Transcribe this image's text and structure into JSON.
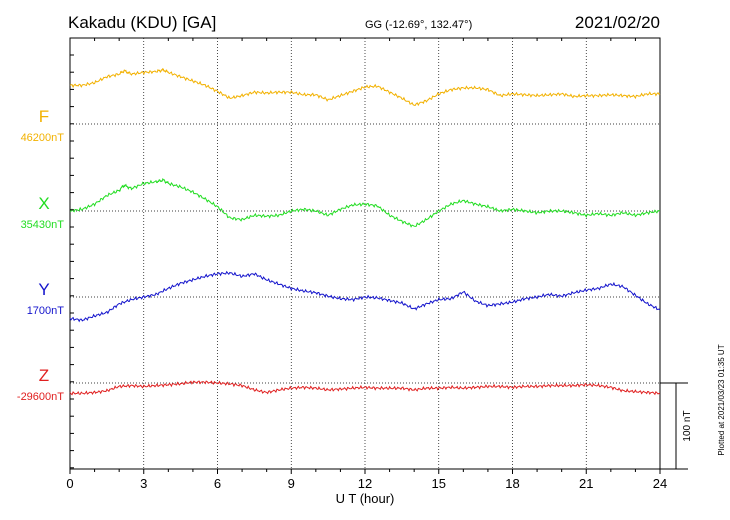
{
  "header": {
    "station": "Kakadu (KDU)  [GA]",
    "coords": "GG (-12.69°, 132.47°)",
    "date": "2021/02/20"
  },
  "side_note": "Plotted at 2021/03/23 01:35 UT",
  "scale_label": "100 nT",
  "chart_data": {
    "type": "line",
    "xlabel": "U T (hour)",
    "xlim": [
      0,
      24
    ],
    "x_ticks": [
      "0",
      "3",
      "6",
      "9",
      "12",
      "15",
      "18",
      "21",
      "24"
    ],
    "scale_nT": 100,
    "colors": {
      "F": "#f2b100",
      "X": "#22dd22",
      "Y": "#1414cc",
      "Z": "#e02020"
    },
    "series": [
      {
        "name": "F",
        "baseline_label": "46200nT",
        "baseline_nT": 46200,
        "points": [
          [
            0,
            45
          ],
          [
            0.5,
            45
          ],
          [
            1,
            48
          ],
          [
            1.5,
            55
          ],
          [
            2,
            58
          ],
          [
            2.2,
            62
          ],
          [
            2.5,
            58
          ],
          [
            3,
            60
          ],
          [
            3.5,
            61
          ],
          [
            3.8,
            63
          ],
          [
            4,
            60
          ],
          [
            4.5,
            55
          ],
          [
            5,
            50
          ],
          [
            5.5,
            45
          ],
          [
            6,
            38
          ],
          [
            6.5,
            30
          ],
          [
            7,
            33
          ],
          [
            7.5,
            37
          ],
          [
            8,
            36
          ],
          [
            8.5,
            37
          ],
          [
            9,
            37
          ],
          [
            9.5,
            34
          ],
          [
            10,
            34
          ],
          [
            10.5,
            28
          ],
          [
            11,
            33
          ],
          [
            11.5,
            38
          ],
          [
            12,
            43
          ],
          [
            12.5,
            44
          ],
          [
            13,
            37
          ],
          [
            13.5,
            30
          ],
          [
            14,
            22
          ],
          [
            14.5,
            27
          ],
          [
            15,
            35
          ],
          [
            15.5,
            40
          ],
          [
            16,
            42
          ],
          [
            16.5,
            42
          ],
          [
            17,
            40
          ],
          [
            17.5,
            33
          ],
          [
            18,
            35
          ],
          [
            18.5,
            34
          ],
          [
            19,
            33
          ],
          [
            19.5,
            34
          ],
          [
            20,
            35
          ],
          [
            20.5,
            32
          ],
          [
            21,
            33
          ],
          [
            21.5,
            33
          ],
          [
            22,
            34
          ],
          [
            22.5,
            33
          ],
          [
            23,
            32
          ],
          [
            23.5,
            35
          ],
          [
            24,
            35
          ]
        ]
      },
      {
        "name": "X",
        "baseline_label": "35430nT",
        "baseline_nT": 35430,
        "points": [
          [
            0,
            0
          ],
          [
            0.5,
            2
          ],
          [
            1,
            8
          ],
          [
            1.5,
            18
          ],
          [
            2,
            24
          ],
          [
            2.2,
            30
          ],
          [
            2.5,
            26
          ],
          [
            3,
            32
          ],
          [
            3.5,
            34
          ],
          [
            3.8,
            36
          ],
          [
            4,
            32
          ],
          [
            4.5,
            28
          ],
          [
            5,
            22
          ],
          [
            5.5,
            14
          ],
          [
            6,
            5
          ],
          [
            6.5,
            -8
          ],
          [
            7,
            -10
          ],
          [
            7.5,
            -5
          ],
          [
            8,
            -6
          ],
          [
            8.5,
            -5
          ],
          [
            9,
            0
          ],
          [
            9.5,
            2
          ],
          [
            10,
            0
          ],
          [
            10.5,
            -5
          ],
          [
            11,
            2
          ],
          [
            11.5,
            7
          ],
          [
            12,
            8
          ],
          [
            12.5,
            6
          ],
          [
            13,
            -5
          ],
          [
            13.5,
            -12
          ],
          [
            14,
            -18
          ],
          [
            14.5,
            -10
          ],
          [
            15,
            0
          ],
          [
            15.5,
            8
          ],
          [
            16,
            12
          ],
          [
            16.5,
            8
          ],
          [
            17,
            5
          ],
          [
            17.5,
            0
          ],
          [
            18,
            2
          ],
          [
            18.5,
            0
          ],
          [
            19,
            -2
          ],
          [
            19.5,
            0
          ],
          [
            20,
            0
          ],
          [
            20.5,
            -2
          ],
          [
            21,
            -5
          ],
          [
            21.5,
            -3
          ],
          [
            22,
            -5
          ],
          [
            22.5,
            -2
          ],
          [
            23,
            -5
          ],
          [
            23.5,
            -2
          ],
          [
            24,
            0
          ]
        ]
      },
      {
        "name": "Y",
        "baseline_label": "1700nT",
        "baseline_nT": 1700,
        "points": [
          [
            0,
            -25
          ],
          [
            0.5,
            -27
          ],
          [
            1,
            -22
          ],
          [
            1.5,
            -18
          ],
          [
            2,
            -8
          ],
          [
            2.5,
            -3
          ],
          [
            3,
            0
          ],
          [
            3.5,
            3
          ],
          [
            4,
            10
          ],
          [
            4.5,
            16
          ],
          [
            5,
            20
          ],
          [
            5.5,
            24
          ],
          [
            6,
            27
          ],
          [
            6.5,
            28
          ],
          [
            7,
            24
          ],
          [
            7.5,
            27
          ],
          [
            8,
            20
          ],
          [
            8.5,
            15
          ],
          [
            9,
            10
          ],
          [
            9.5,
            7
          ],
          [
            10,
            5
          ],
          [
            10.5,
            1
          ],
          [
            11,
            -2
          ],
          [
            11.5,
            -3
          ],
          [
            12,
            0
          ],
          [
            12.5,
            -1
          ],
          [
            13,
            -4
          ],
          [
            13.5,
            -7
          ],
          [
            14,
            -14
          ],
          [
            14.5,
            -8
          ],
          [
            15,
            -3
          ],
          [
            15.5,
            -2
          ],
          [
            16,
            6
          ],
          [
            16.5,
            -5
          ],
          [
            17,
            -10
          ],
          [
            17.5,
            -8
          ],
          [
            18,
            -6
          ],
          [
            18.5,
            -2
          ],
          [
            19,
            0
          ],
          [
            19.5,
            3
          ],
          [
            20,
            1
          ],
          [
            20.5,
            5
          ],
          [
            21,
            8
          ],
          [
            21.5,
            10
          ],
          [
            22,
            15
          ],
          [
            22.5,
            12
          ],
          [
            23,
            2
          ],
          [
            23.5,
            -8
          ],
          [
            24,
            -15
          ]
        ]
      },
      {
        "name": "Z",
        "baseline_label": "-29600nT",
        "baseline_nT": -29600,
        "points": [
          [
            0,
            -12
          ],
          [
            0.5,
            -12
          ],
          [
            1,
            -11
          ],
          [
            1.5,
            -9
          ],
          [
            2,
            -4
          ],
          [
            2.5,
            -3
          ],
          [
            3,
            -4
          ],
          [
            3.5,
            -3
          ],
          [
            4,
            -2
          ],
          [
            4.5,
            -1
          ],
          [
            5,
            1
          ],
          [
            5.5,
            1
          ],
          [
            6,
            0
          ],
          [
            6.5,
            -1
          ],
          [
            7,
            -3
          ],
          [
            7.5,
            -8
          ],
          [
            8,
            -11
          ],
          [
            8.5,
            -8
          ],
          [
            9,
            -6
          ],
          [
            9.5,
            -5
          ],
          [
            10,
            -6
          ],
          [
            10.5,
            -8
          ],
          [
            11,
            -7
          ],
          [
            11.5,
            -6
          ],
          [
            12,
            -5
          ],
          [
            12.5,
            -6
          ],
          [
            13,
            -6
          ],
          [
            13.5,
            -6
          ],
          [
            14,
            -8
          ],
          [
            14.5,
            -6
          ],
          [
            15,
            -6
          ],
          [
            15.5,
            -5
          ],
          [
            16,
            -6
          ],
          [
            16.5,
            -5
          ],
          [
            17,
            -4
          ],
          [
            17.5,
            -4
          ],
          [
            18,
            -5
          ],
          [
            18.5,
            -4
          ],
          [
            19,
            -4
          ],
          [
            19.5,
            -3
          ],
          [
            20,
            -3
          ],
          [
            20.5,
            -3
          ],
          [
            21,
            -2
          ],
          [
            21.5,
            -3
          ],
          [
            22,
            -5
          ],
          [
            22.5,
            -9
          ],
          [
            23,
            -10
          ],
          [
            23.5,
            -11
          ],
          [
            24,
            -12
          ]
        ]
      }
    ]
  }
}
